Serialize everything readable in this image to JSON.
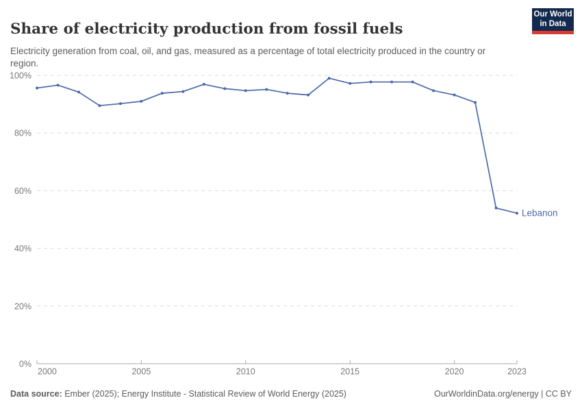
{
  "header": {
    "title": "Share of electricity production from fossil fuels",
    "subtitle": "Electricity generation from coal, oil, and gas, measured as a percentage of total electricity produced in the country or region."
  },
  "logo": {
    "line1": "Our World",
    "line2": "in Data",
    "bg_color": "#13294d",
    "stripe_color": "#d73c34"
  },
  "chart_data": {
    "type": "line",
    "title": "Share of electricity production from fossil fuels",
    "xlabel": "",
    "ylabel": "",
    "xlim": [
      2000,
      2023
    ],
    "ylim": [
      0,
      100
    ],
    "xticks": [
      2000,
      2005,
      2010,
      2015,
      2020,
      2023
    ],
    "yticks": [
      0,
      20,
      40,
      60,
      80,
      100
    ],
    "ytick_suffix": "%",
    "grid": "horizontal-dashed",
    "legend_position": "end-of-line",
    "colors": {
      "line": "#4a69a9",
      "grid": "#dcdcdc",
      "axis": "#a8a8a8",
      "tick_label": "#787878"
    },
    "series": [
      {
        "name": "Lebanon",
        "color": "#4a69a9",
        "x": [
          2000,
          2001,
          2002,
          2003,
          2004,
          2005,
          2006,
          2007,
          2008,
          2009,
          2010,
          2011,
          2012,
          2013,
          2014,
          2015,
          2016,
          2017,
          2018,
          2019,
          2020,
          2021,
          2022,
          2023
        ],
        "values": [
          95.6,
          96.6,
          94.2,
          89.5,
          90.2,
          91.0,
          93.8,
          94.4,
          96.9,
          95.4,
          94.7,
          95.1,
          93.8,
          93.2,
          99.0,
          97.2,
          97.7,
          97.7,
          97.7,
          94.7,
          93.2,
          90.6,
          54.0,
          52.2
        ]
      }
    ]
  },
  "footer": {
    "source_label": "Data source:",
    "source_text": " Ember (2025); Energy Institute - Statistical Review of World Energy (2025)",
    "right_text": "OurWorldinData.org/energy | CC BY"
  }
}
